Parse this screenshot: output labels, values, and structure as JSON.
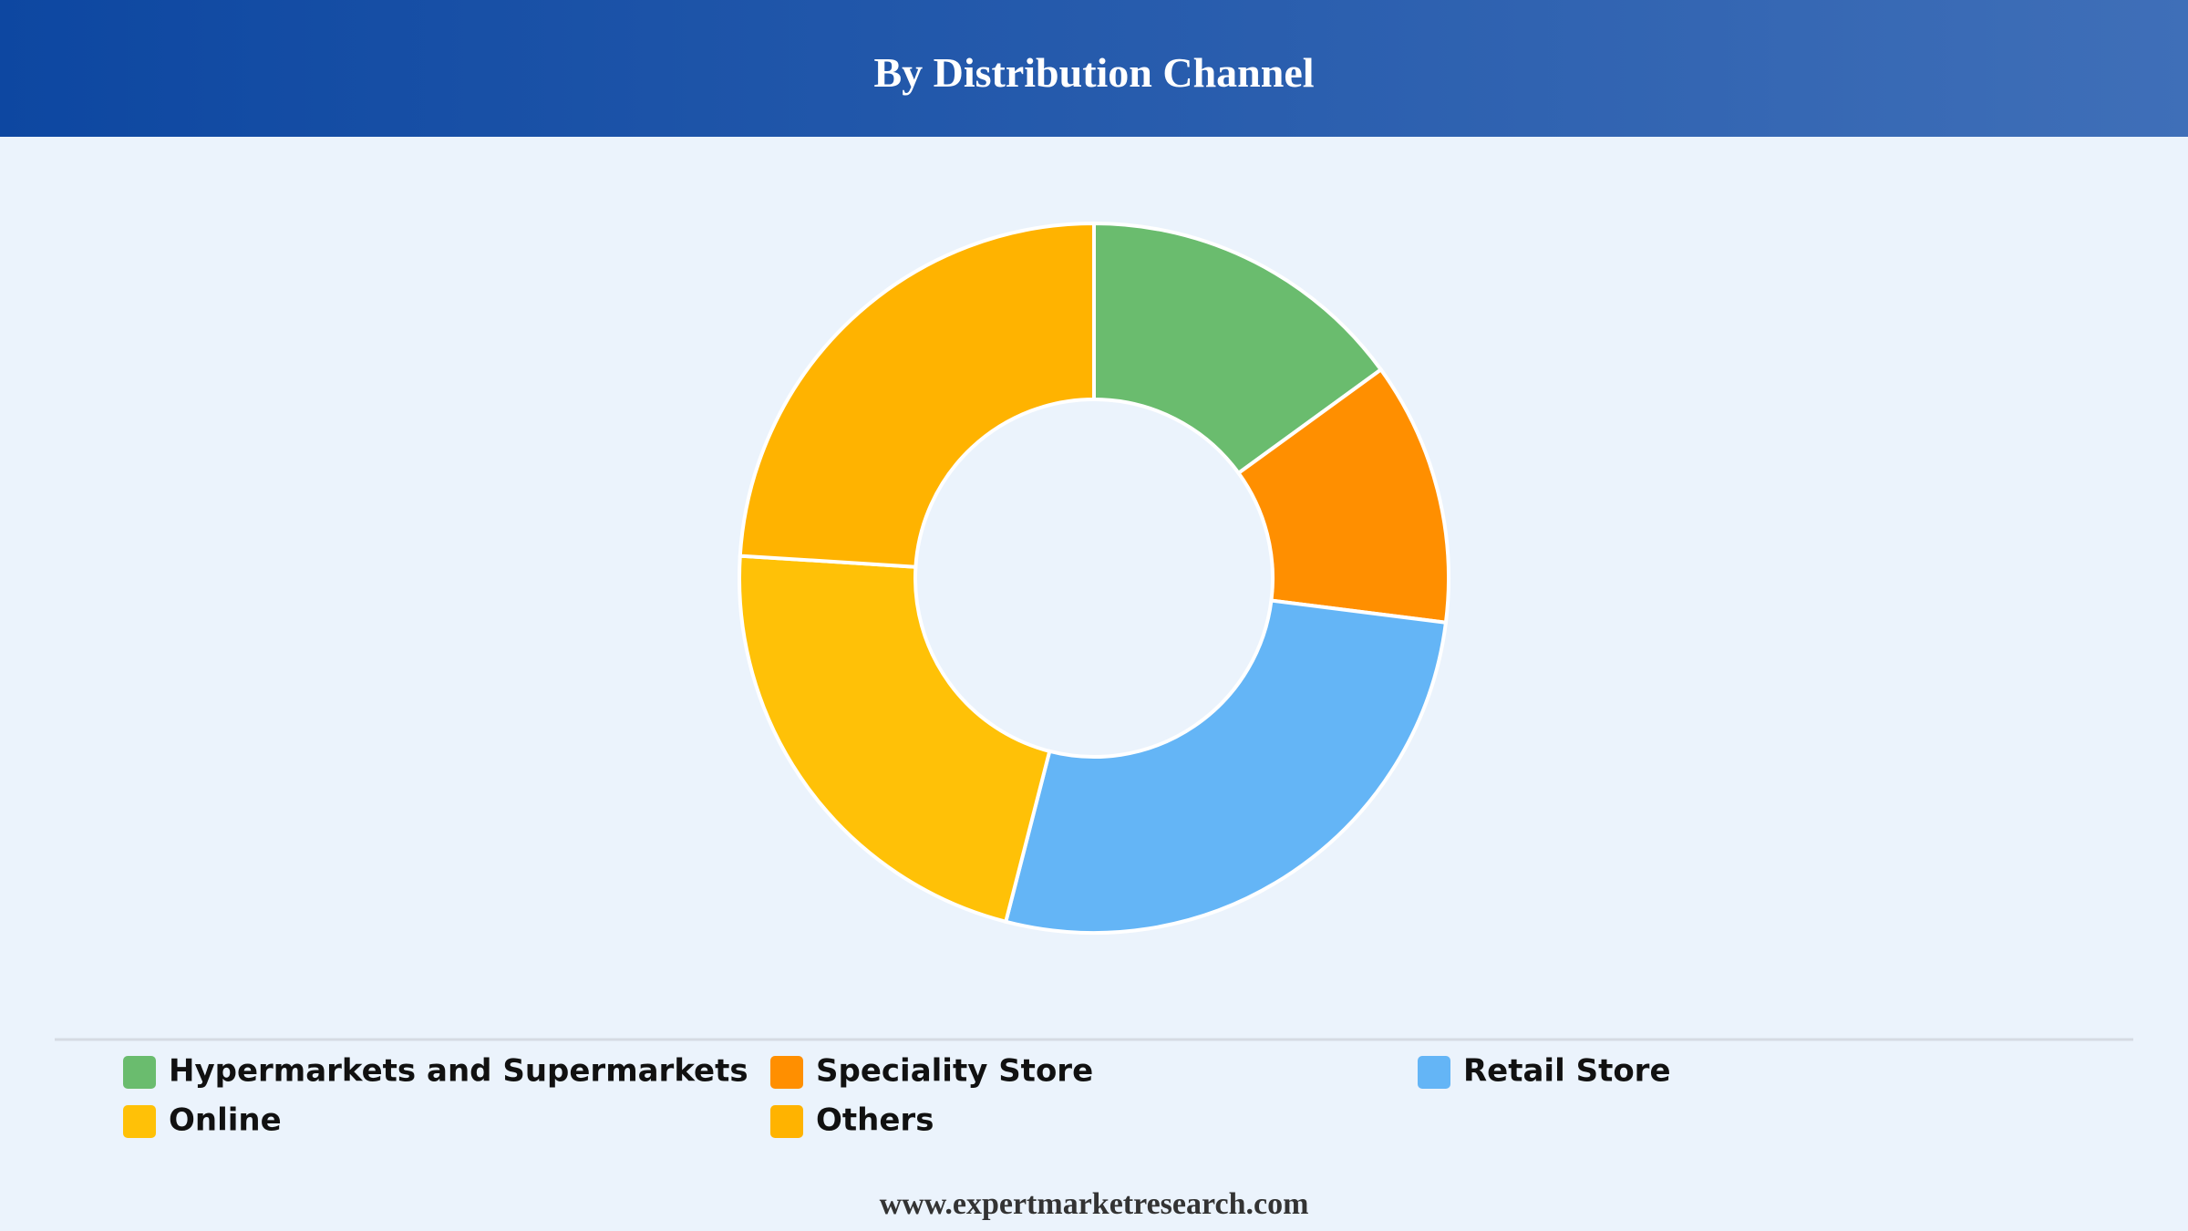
{
  "chart_data": {
    "type": "donut",
    "title": "By Distribution Channel",
    "categories": [
      "Hypermarkets and Supermarkets",
      "Speciality Store",
      "Retail Store",
      "Online",
      "Others"
    ],
    "values": [
      15,
      12,
      27,
      22,
      24
    ],
    "colors": [
      "#6abc6e",
      "#ff8f00",
      "#64b5f6",
      "#ffc107",
      "#ffb300"
    ],
    "legend": "bottom"
  },
  "footer": {
    "text": "www.expertmarketresearch.com"
  }
}
